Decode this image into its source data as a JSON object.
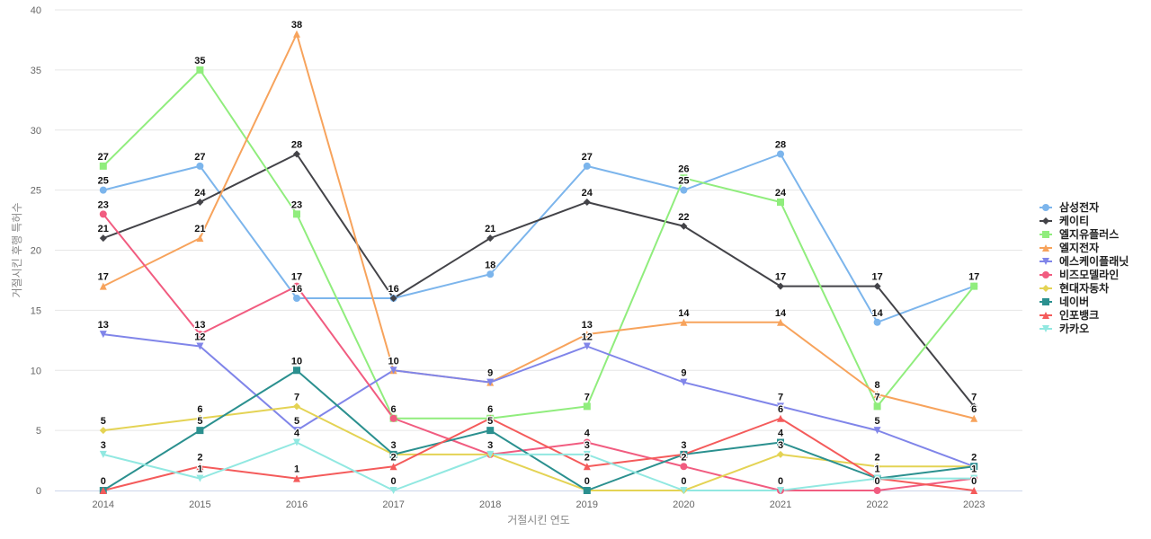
{
  "chart_data": {
    "type": "line",
    "title": "",
    "xlabel": "거절시킨 연도",
    "ylabel": "거절시킨 후행 특허수",
    "ylim": [
      0,
      40
    ],
    "yticks": [
      0,
      5,
      10,
      15,
      20,
      25,
      30,
      35,
      40
    ],
    "grid": true,
    "legend_position": "right",
    "categories": [
      "2014",
      "2015",
      "2016",
      "2017",
      "2018",
      "2019",
      "2020",
      "2021",
      "2022",
      "2023"
    ],
    "series": [
      {
        "name": "삼성전자",
        "color": "#7cb5ec",
        "marker": "circle",
        "values": [
          25,
          27,
          16,
          16,
          18,
          27,
          25,
          28,
          14,
          17
        ]
      },
      {
        "name": "케이티",
        "color": "#434348",
        "marker": "diamond",
        "values": [
          21,
          24,
          28,
          16,
          21,
          24,
          22,
          17,
          17,
          7
        ]
      },
      {
        "name": "엘지유플러스",
        "color": "#90ed7d",
        "marker": "square",
        "values": [
          27,
          35,
          23,
          6,
          6,
          7,
          26,
          24,
          7,
          17
        ]
      },
      {
        "name": "엘지전자",
        "color": "#f7a35c",
        "marker": "triangle",
        "values": [
          17,
          21,
          38,
          10,
          9,
          13,
          14,
          14,
          8,
          6
        ]
      },
      {
        "name": "에스케이플래닛",
        "color": "#8085e9",
        "marker": "triangle-down",
        "values": [
          13,
          12,
          5,
          10,
          9,
          12,
          9,
          7,
          5,
          2
        ]
      },
      {
        "name": "비즈모델라인",
        "color": "#f15c80",
        "marker": "circle",
        "values": [
          23,
          13,
          17,
          6,
          3,
          4,
          2,
          0,
          0,
          1
        ]
      },
      {
        "name": "현대자동차",
        "color": "#e4d354",
        "marker": "diamond",
        "values": [
          5,
          6,
          7,
          3,
          3,
          0,
          0,
          3,
          2,
          2
        ]
      },
      {
        "name": "네이버",
        "color": "#2b908f",
        "marker": "square",
        "values": [
          0,
          5,
          10,
          3,
          5,
          0,
          3,
          4,
          1,
          2
        ]
      },
      {
        "name": "인포뱅크",
        "color": "#f45b5b",
        "marker": "triangle",
        "values": [
          0,
          2,
          1,
          2,
          6,
          2,
          3,
          6,
          1,
          0
        ]
      },
      {
        "name": "카카오",
        "color": "#91e8e1",
        "marker": "triangle-down",
        "values": [
          3,
          1,
          4,
          0,
          3,
          3,
          0,
          0,
          1,
          1
        ]
      }
    ]
  }
}
